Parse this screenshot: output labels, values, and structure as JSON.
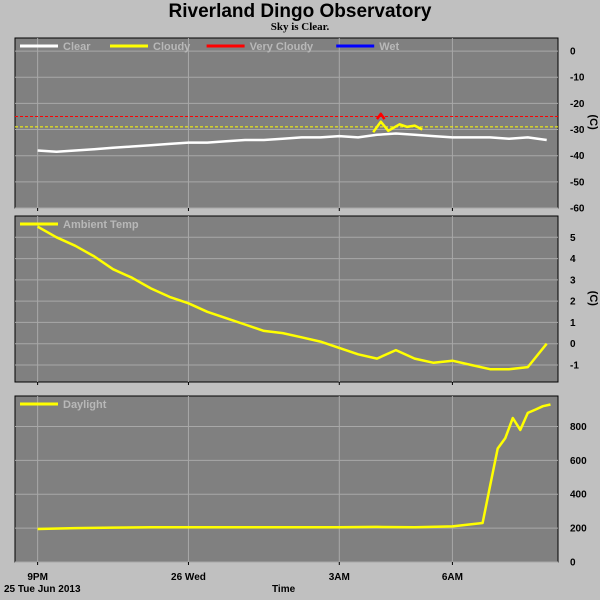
{
  "title": "Riverland Dingo Observatory",
  "subtitle": "Sky is Clear.",
  "footer": {
    "date": "25 Tue Jun 2013",
    "time_label": "Time"
  },
  "colors": {
    "plot_bg": "#808080",
    "page_bg": "#c0c0c0",
    "clear": "#ffffff",
    "cloudy": "#ffff00",
    "very_cloudy": "#ff0000",
    "wet": "#0000ff",
    "grid": "#a8a8a8"
  },
  "chart_data": [
    {
      "type": "line",
      "panel": "sky",
      "legend": [
        "Clear",
        "Cloudy",
        "Very Cloudy",
        "Wet"
      ],
      "ylabel": "(C)",
      "ylim": [
        -60,
        5
      ],
      "yticks": [
        0,
        -10,
        -20,
        -30,
        -40,
        -50,
        -60
      ],
      "thresholds": [
        {
          "name": "Cloudy",
          "value": -29
        },
        {
          "name": "Very Cloudy",
          "value": -25
        }
      ],
      "series": [
        {
          "name": "Clear",
          "x": [
            0,
            0.5,
            1,
            1.5,
            2,
            2.5,
            3,
            3.5,
            4,
            4.5,
            5,
            5.5,
            6,
            6.5,
            7,
            7.5,
            8,
            8.5,
            9,
            9.5,
            10,
            10.5,
            11,
            11.5,
            12,
            12.5,
            13,
            13.5
          ],
          "y": [
            -38,
            -38.5,
            -38,
            -37.5,
            -37,
            -36.5,
            -36,
            -35.5,
            -35,
            -35,
            -34.5,
            -34,
            -34,
            -33.5,
            -33,
            -33,
            -32.5,
            -33,
            -32,
            -31.5,
            -32,
            -32.5,
            -33,
            -33,
            -33,
            -33.5,
            -33,
            -34
          ]
        },
        {
          "name": "Cloudy",
          "x": [
            8.9,
            9.1,
            9.3,
            9.6,
            9.8,
            10.0,
            10.2
          ],
          "y": [
            -31,
            -27,
            -30.5,
            -28,
            -29,
            -28.5,
            -30
          ]
        },
        {
          "name": "Very Cloudy",
          "x": [
            9.0,
            9.1,
            9.2
          ],
          "y": [
            -26,
            -24,
            -26
          ]
        }
      ]
    },
    {
      "type": "line",
      "panel": "temperature",
      "legend": [
        "Ambient Temp"
      ],
      "ylabel": "(C)",
      "ylim": [
        -1.8,
        6
      ],
      "yticks": [
        5,
        4,
        3,
        2,
        1,
        0,
        -1
      ],
      "series": [
        {
          "name": "Ambient Temp",
          "x": [
            0,
            0.5,
            1,
            1.5,
            2,
            2.5,
            3,
            3.5,
            4,
            4.5,
            5,
            5.5,
            6,
            6.5,
            7,
            7.5,
            8,
            8.5,
            9,
            9.5,
            10,
            10.5,
            11,
            11.5,
            12,
            12.5,
            13,
            13.5
          ],
          "y": [
            5.5,
            5.0,
            4.6,
            4.1,
            3.5,
            3.1,
            2.6,
            2.2,
            1.9,
            1.5,
            1.2,
            0.9,
            0.6,
            0.5,
            0.3,
            0.1,
            -0.2,
            -0.5,
            -0.7,
            -0.3,
            -0.7,
            -0.9,
            -0.8,
            -1.0,
            -1.2,
            -1.2,
            -1.1,
            0.0
          ]
        }
      ]
    },
    {
      "type": "line",
      "panel": "daylight",
      "legend": [
        "Daylight"
      ],
      "ylabel": "",
      "ylim": [
        0,
        980
      ],
      "yticks": [
        800,
        600,
        400,
        200,
        0
      ],
      "series": [
        {
          "name": "Daylight",
          "x": [
            0,
            1,
            2,
            3,
            4,
            5,
            6,
            7,
            8,
            9,
            10,
            11,
            11.8,
            12.0,
            12.2,
            12.4,
            12.6,
            12.8,
            13.0,
            13.2,
            13.4,
            13.6
          ],
          "y": [
            195,
            200,
            203,
            205,
            205,
            205,
            205,
            205,
            205,
            207,
            205,
            210,
            230,
            450,
            670,
            730,
            850,
            780,
            880,
            900,
            920,
            930
          ]
        }
      ]
    }
  ],
  "x_axis": {
    "range": [
      -0.6,
      13.8
    ],
    "ticks": [
      {
        "value": 0,
        "label": "9PM"
      },
      {
        "value": 4,
        "label": "26 Wed"
      },
      {
        "value": 8,
        "label": "3AM"
      },
      {
        "value": 11,
        "label": "6AM"
      }
    ]
  }
}
